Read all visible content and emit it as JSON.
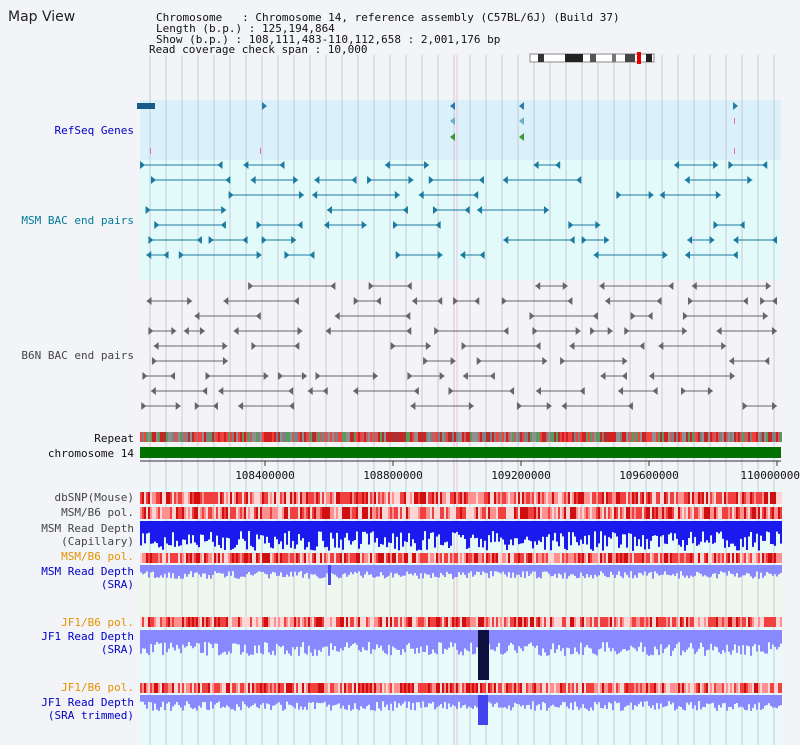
{
  "title": "Map View",
  "header": {
    "chromosome": "Chromosome   : Chromosome 14, reference assembly (C57BL/6J) (Build 37)",
    "length": "Length (b.p.) : 125,194,864",
    "show": "Show (b.p.) : 108,111,483-110,112,658 : 2,001,176 bp",
    "coverage": "Read coverage check span : 10,000"
  },
  "tracks": {
    "refseq": "RefSeq Genes",
    "msm_bac": "MSM BAC end pairs",
    "b6n_bac": "B6N BAC end pairs",
    "repeat": "Repeat",
    "chromosome": "chromosome 14",
    "dbsnp": "dbSNP(Mouse)",
    "msm_pol1": "MSM/B6 pol.",
    "msm_depth_cap_1": "MSM Read Depth",
    "msm_depth_cap_2": "(Capillary)",
    "msm_pol2": "MSM/B6 pol.",
    "msm_depth_sra_1": "MSM Read Depth",
    "msm_depth_sra_2": "(SRA)",
    "jf1_pol1": "JF1/B6 pol.",
    "jf1_depth_1": "JF1 Read Depth",
    "jf1_depth_2": "(SRA)",
    "jf1_pol2": "JF1/B6 pol.",
    "jf1_trim_1": "JF1 Read Depth",
    "jf1_trim_2": "(SRA trimmed)"
  },
  "axis": {
    "ticks": [
      "108400000",
      "108800000",
      "109200000",
      "109600000",
      "110000000"
    ]
  },
  "colors": {
    "refseq_bg": "#daf0fa",
    "msm_bg": "#e2fafa",
    "b6n_bg": "#f4f4f8",
    "lower_bg": "#e8fafa",
    "chromosome": "#007000",
    "depth_blue": "#1a1aee",
    "depth_light": "#8888ff",
    "pol_red": "#ee2020"
  }
}
